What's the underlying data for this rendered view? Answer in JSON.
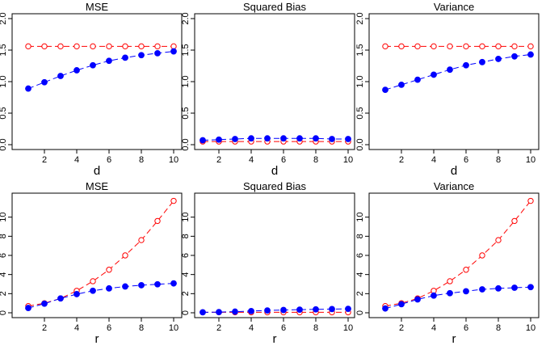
{
  "colors": {
    "red_series": "#ff0000",
    "blue_series": "#0000ff",
    "axis": "#000000"
  },
  "chart_data": [
    {
      "type": "line",
      "title": "MSE",
      "xlabel": "d",
      "ylabel": "",
      "x": [
        1,
        2,
        3,
        4,
        5,
        6,
        7,
        8,
        9,
        10
      ],
      "xticks": [
        2,
        4,
        6,
        8,
        10
      ],
      "ylim": [
        0,
        2
      ],
      "yticks": [
        "0.0",
        "0.5",
        "1.0",
        "1.5",
        "2.0"
      ],
      "series": [
        {
          "values": [
            1.56,
            1.56,
            1.56,
            1.56,
            1.56,
            1.56,
            1.56,
            1.56,
            1.56,
            1.56
          ],
          "color": "red",
          "marker": "open-circle",
          "line": "dashed"
        },
        {
          "values": [
            0.89,
            0.99,
            1.09,
            1.18,
            1.26,
            1.33,
            1.38,
            1.42,
            1.45,
            1.48
          ],
          "color": "blue",
          "marker": "filled-circle",
          "line": "dashed"
        }
      ]
    },
    {
      "type": "line",
      "title": "Squared Bias",
      "xlabel": "d",
      "ylabel": "",
      "x": [
        1,
        2,
        3,
        4,
        5,
        6,
        7,
        8,
        9,
        10
      ],
      "xticks": [
        2,
        4,
        6,
        8,
        10
      ],
      "ylim": [
        0,
        2
      ],
      "yticks": [
        "0.0",
        "0.5",
        "1.0",
        "1.5",
        "2.0"
      ],
      "series": [
        {
          "values": [
            0.05,
            0.05,
            0.05,
            0.05,
            0.05,
            0.05,
            0.05,
            0.05,
            0.05,
            0.05
          ],
          "color": "red",
          "marker": "open-circle",
          "line": "dashed"
        },
        {
          "values": [
            0.07,
            0.08,
            0.09,
            0.1,
            0.1,
            0.1,
            0.1,
            0.1,
            0.09,
            0.09
          ],
          "color": "blue",
          "marker": "filled-circle",
          "line": "dashed"
        }
      ]
    },
    {
      "type": "line",
      "title": "Variance",
      "xlabel": "d",
      "ylabel": "",
      "x": [
        1,
        2,
        3,
        4,
        5,
        6,
        7,
        8,
        9,
        10
      ],
      "xticks": [
        2,
        4,
        6,
        8,
        10
      ],
      "ylim": [
        0,
        2
      ],
      "yticks": [
        "0.0",
        "0.5",
        "1.0",
        "1.5",
        "2.0"
      ],
      "series": [
        {
          "values": [
            1.56,
            1.56,
            1.56,
            1.56,
            1.56,
            1.56,
            1.56,
            1.56,
            1.56,
            1.56
          ],
          "color": "red",
          "marker": "open-circle",
          "line": "dashed"
        },
        {
          "values": [
            0.87,
            0.95,
            1.03,
            1.11,
            1.19,
            1.26,
            1.31,
            1.36,
            1.4,
            1.43
          ],
          "color": "blue",
          "marker": "filled-circle",
          "line": "dashed"
        }
      ]
    },
    {
      "type": "line",
      "title": "MSE",
      "xlabel": "r",
      "ylabel": "",
      "x": [
        1,
        2,
        3,
        4,
        5,
        6,
        7,
        8,
        9,
        10
      ],
      "xticks": [
        2,
        4,
        6,
        8,
        10
      ],
      "ylim": [
        0,
        12
      ],
      "yticks": [
        "0",
        "2",
        "4",
        "6",
        "8",
        "10"
      ],
      "series": [
        {
          "values": [
            0.7,
            1.0,
            1.5,
            2.3,
            3.3,
            4.5,
            6.0,
            7.6,
            9.6,
            11.7
          ],
          "color": "red",
          "marker": "open-circle",
          "line": "dashed"
        },
        {
          "values": [
            0.5,
            0.95,
            1.5,
            1.95,
            2.3,
            2.55,
            2.75,
            2.88,
            2.98,
            3.07
          ],
          "color": "blue",
          "marker": "filled-circle",
          "line": "dashed"
        }
      ]
    },
    {
      "type": "line",
      "title": "Squared Bias",
      "xlabel": "r",
      "ylabel": "",
      "x": [
        1,
        2,
        3,
        4,
        5,
        6,
        7,
        8,
        9,
        10
      ],
      "xticks": [
        2,
        4,
        6,
        8,
        10
      ],
      "ylim": [
        0,
        12
      ],
      "yticks": [
        "0",
        "2",
        "4",
        "6",
        "8",
        "10"
      ],
      "series": [
        {
          "values": [
            0.05,
            0.05,
            0.05,
            0.05,
            0.05,
            0.05,
            0.05,
            0.05,
            0.05,
            0.05
          ],
          "color": "red",
          "marker": "open-circle",
          "line": "dashed"
        },
        {
          "values": [
            0.05,
            0.07,
            0.12,
            0.18,
            0.24,
            0.29,
            0.33,
            0.36,
            0.39,
            0.41
          ],
          "color": "blue",
          "marker": "filled-circle",
          "line": "dashed"
        }
      ]
    },
    {
      "type": "line",
      "title": "Variance",
      "xlabel": "r",
      "ylabel": "",
      "x": [
        1,
        2,
        3,
        4,
        5,
        6,
        7,
        8,
        9,
        10
      ],
      "xticks": [
        2,
        4,
        6,
        8,
        10
      ],
      "ylim": [
        0,
        12
      ],
      "yticks": [
        "0",
        "2",
        "4",
        "6",
        "8",
        "10"
      ],
      "series": [
        {
          "values": [
            0.7,
            1.0,
            1.5,
            2.3,
            3.3,
            4.5,
            6.0,
            7.6,
            9.6,
            11.7
          ],
          "color": "red",
          "marker": "open-circle",
          "line": "dashed"
        },
        {
          "values": [
            0.45,
            0.9,
            1.4,
            1.8,
            2.05,
            2.25,
            2.45,
            2.55,
            2.62,
            2.68
          ],
          "color": "blue",
          "marker": "filled-circle",
          "line": "dashed"
        }
      ]
    }
  ]
}
